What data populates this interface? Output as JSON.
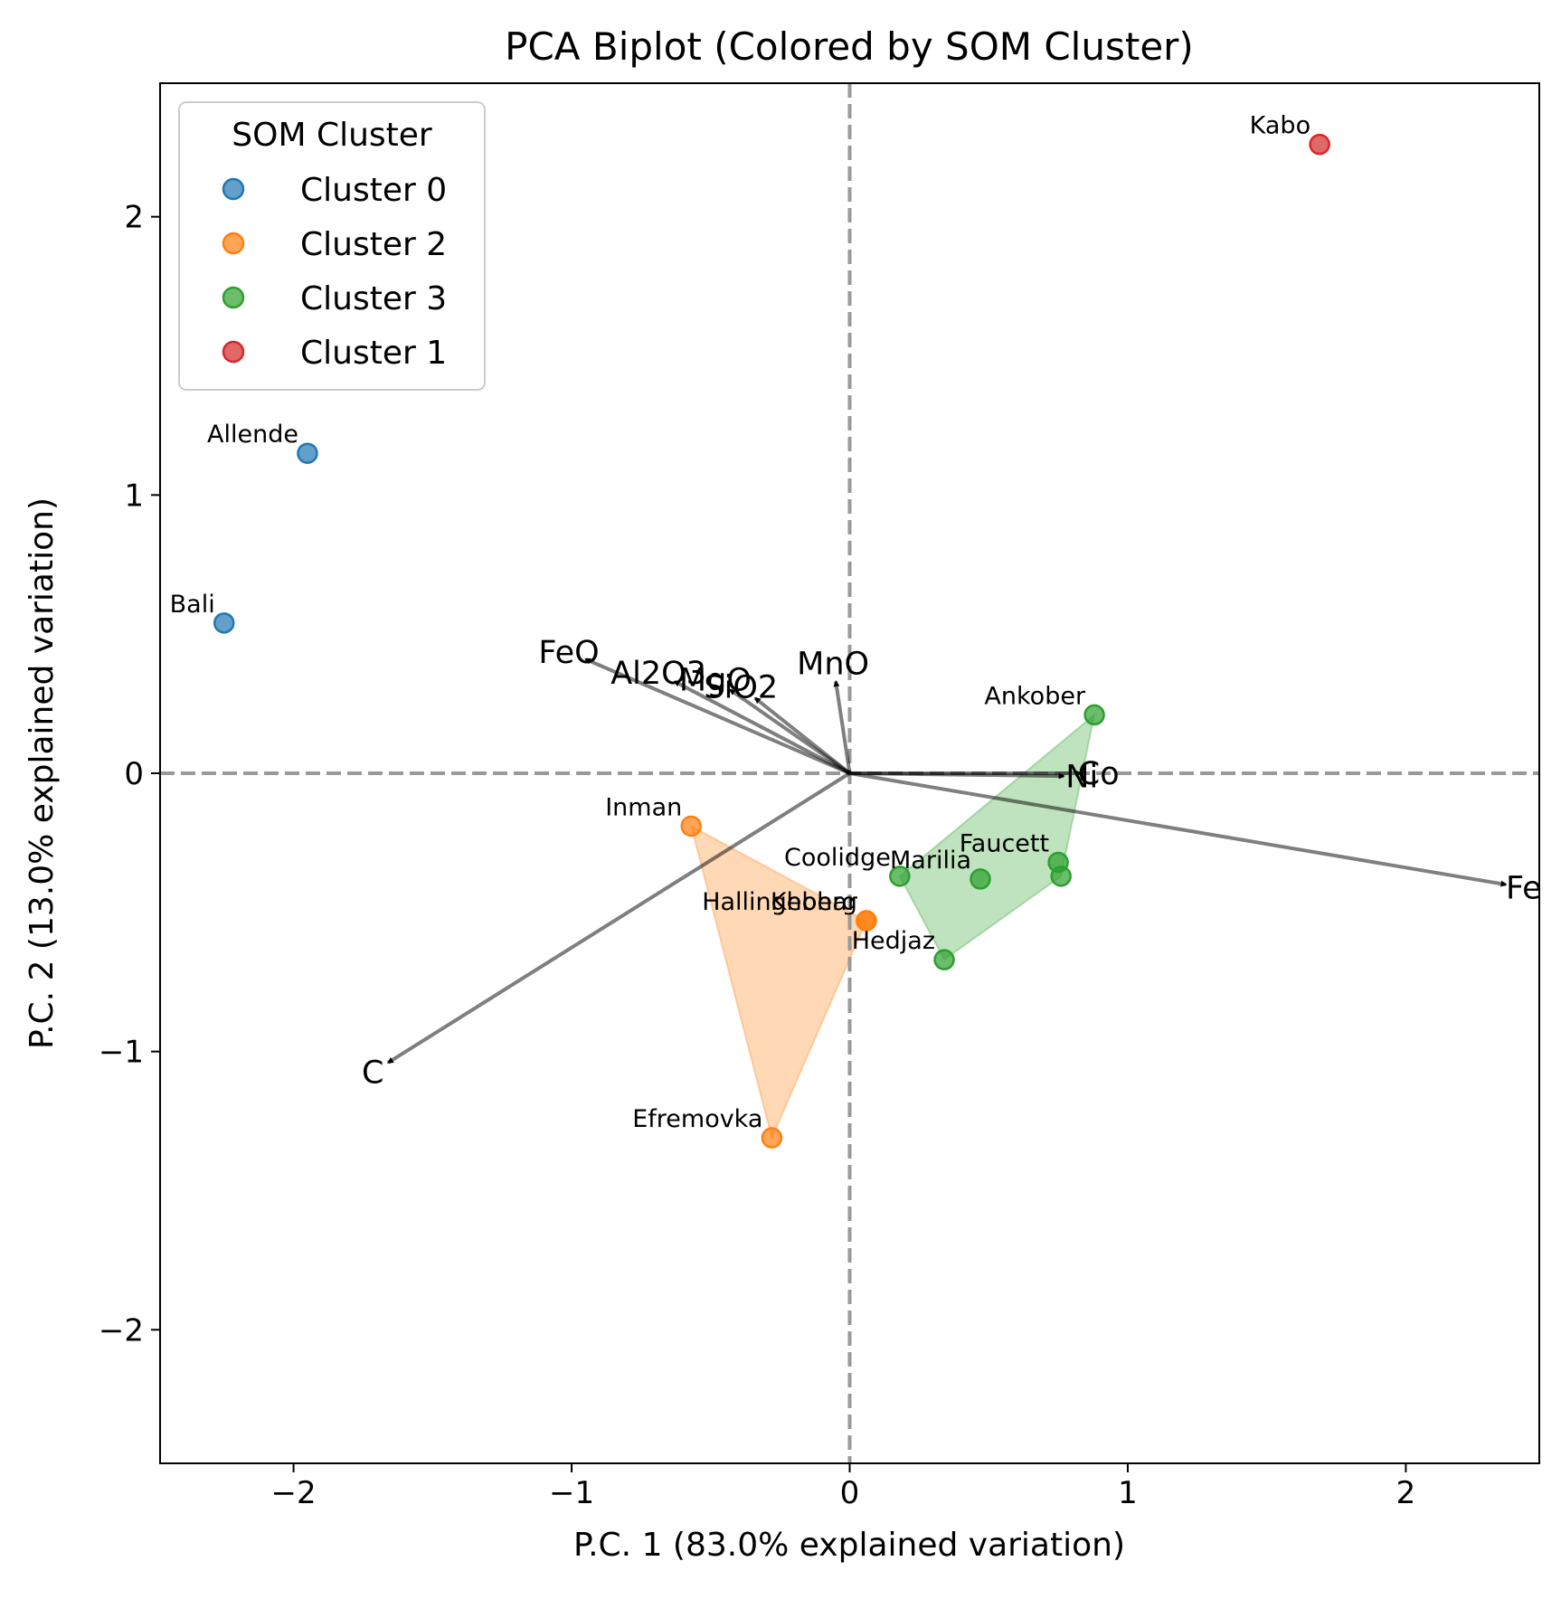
{
  "chart_data": {
    "type": "scatter",
    "title": "PCA Biplot (Colored by SOM Cluster)",
    "xlabel": "P.C. 1 (83.0% explained variation)",
    "ylabel": "P.C. 2 (13.0% explained variation)",
    "xlim": [
      -2.48,
      2.48
    ],
    "ylim": [
      -2.48,
      2.48
    ],
    "xticks": [
      -2,
      -1,
      0,
      1,
      2
    ],
    "yticks": [
      -2,
      -1,
      0,
      1,
      2
    ],
    "xtick_labels": [
      "−2",
      "−1",
      "0",
      "1",
      "2"
    ],
    "ytick_labels": [
      "−2",
      "−1",
      "0",
      "1",
      "2"
    ],
    "grid": false,
    "reference_lines": {
      "x": 0,
      "y": 0,
      "style": "dashed",
      "color": "#999999"
    },
    "legend": {
      "title": "SOM Cluster",
      "placement": "top-left",
      "entries": [
        {
          "name": "Cluster 0",
          "color": "#1f77b4"
        },
        {
          "name": "Cluster 2",
          "color": "#ff7f0e"
        },
        {
          "name": "Cluster 3",
          "color": "#2ca02c"
        },
        {
          "name": "Cluster 1",
          "color": "#d62728"
        }
      ]
    },
    "series": [
      {
        "name": "Cluster 0",
        "color": "#1f77b4",
        "points": [
          {
            "label": "Allende",
            "x": -1.95,
            "y": 1.15
          },
          {
            "label": "Bali",
            "x": -2.25,
            "y": 0.54
          }
        ]
      },
      {
        "name": "Cluster 2",
        "color": "#ff7f0e",
        "hull": true,
        "points": [
          {
            "label": "Inman",
            "x": -0.57,
            "y": -0.19
          },
          {
            "label": "Hallingeberg",
            "x": 0.06,
            "y": -0.53
          },
          {
            "label": "Khohar",
            "x": 0.06,
            "y": -0.53
          },
          {
            "label": "Efremovka",
            "x": -0.28,
            "y": -1.31
          }
        ]
      },
      {
        "name": "Cluster 3",
        "color": "#2ca02c",
        "hull": true,
        "points": [
          {
            "label": "Ankober",
            "x": 0.88,
            "y": 0.21
          },
          {
            "label": "Coolidge",
            "x": 0.18,
            "y": -0.37
          },
          {
            "label": "Faucett",
            "x": 0.75,
            "y": -0.32
          },
          {
            "label": "Marilia",
            "x": 0.47,
            "y": -0.38
          },
          {
            "label": "",
            "x": 0.76,
            "y": -0.37
          },
          {
            "label": "Hedjaz",
            "x": 0.34,
            "y": -0.67
          }
        ]
      },
      {
        "name": "Cluster 1",
        "color": "#d62728",
        "points": [
          {
            "label": "Kabo",
            "x": 1.69,
            "y": 2.26
          }
        ]
      }
    ],
    "loadings": [
      {
        "name": "FeO",
        "x": -0.95,
        "y": 0.41
      },
      {
        "name": "Al2O3",
        "x": -0.63,
        "y": 0.33
      },
      {
        "name": "MgO",
        "x": -0.43,
        "y": 0.3
      },
      {
        "name": "MnO",
        "x": -0.05,
        "y": 0.33
      },
      {
        "name": "SiO2",
        "x": -0.34,
        "y": 0.27
      },
      {
        "name": "Ni",
        "x": 0.77,
        "y": -0.01
      },
      {
        "name": "Co",
        "x": 0.83,
        "y": 0.0
      },
      {
        "name": "Fe",
        "x": 2.36,
        "y": -0.4
      },
      {
        "name": "C",
        "x": -1.66,
        "y": -1.04
      }
    ]
  }
}
